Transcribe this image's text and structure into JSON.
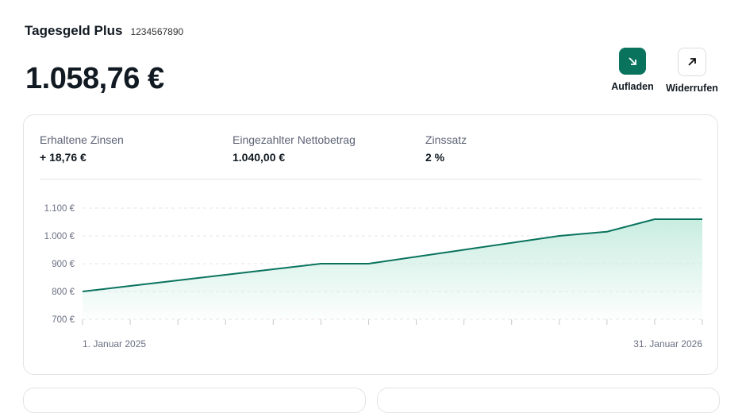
{
  "account": {
    "name": "Tagesgeld Plus",
    "number": "1234567890",
    "balance": "1.058,76 €"
  },
  "actions": [
    {
      "label": "Aufladen",
      "icon": "arrow-down-right-icon"
    },
    {
      "label": "Widerrufen",
      "icon": "arrow-up-right-icon"
    }
  ],
  "stats": [
    {
      "label": "Erhaltene Zinsen",
      "value": "+ 18,76 €"
    },
    {
      "label": "Eingezahlter Nettobetrag",
      "value": "1.040,00 €"
    },
    {
      "label": "Zinssatz",
      "value": "2 %"
    }
  ],
  "colors": {
    "accent": "#0a735e",
    "fill": "#c9ede1"
  },
  "chart_data": {
    "type": "area",
    "x_tick_labels": [
      "1. Januar 2025",
      "31. Januar 2026"
    ],
    "values": [
      800,
      820,
      840,
      860,
      880,
      900,
      900,
      925,
      950,
      975,
      1000,
      1015,
      1060,
      1060
    ],
    "y_ticks": [
      700,
      800,
      900,
      1000,
      1100
    ],
    "y_tick_labels": [
      "700 €",
      "800 €",
      "900 €",
      "1.000 €",
      "1.100 €"
    ],
    "ylim": [
      700,
      1100
    ],
    "grid": true
  }
}
